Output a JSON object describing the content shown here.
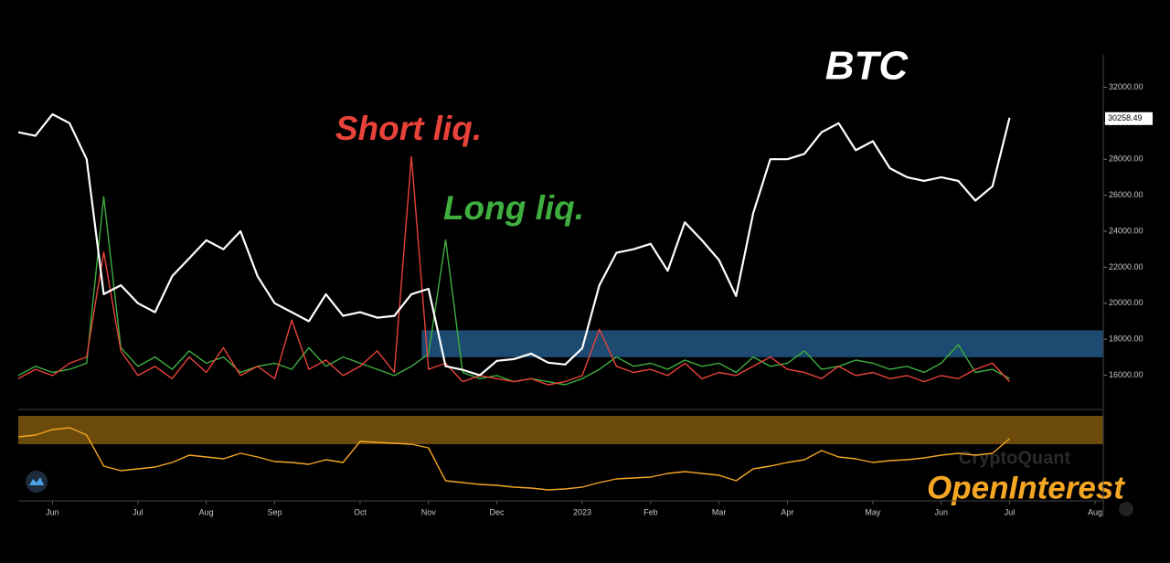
{
  "chart_data": [
    {
      "type": "line",
      "series": [
        {
          "name": "BTC",
          "color": "#ffffff",
          "axis": "y",
          "values": [
            29500,
            29300,
            30500,
            30000,
            28000,
            20500,
            21000,
            20000,
            19500,
            21500,
            22500,
            23500,
            23000,
            24000,
            21500,
            20000,
            19500,
            19000,
            20500,
            19300,
            19500,
            19200,
            19300,
            20500,
            20800,
            16500,
            16300,
            16000,
            16800,
            16900,
            17200,
            16700,
            16600,
            17500,
            21000,
            22800,
            23000,
            23300,
            21800,
            24500,
            23500,
            22400,
            20400,
            25000,
            28000,
            28000,
            28300,
            29500,
            30000,
            28500,
            29000,
            27500,
            27000,
            26800,
            27000,
            26800,
            25700,
            26500,
            30300,
            null,
            null,
            null,
            null,
            null
          ]
        },
        {
          "name": "Short liq.",
          "color": "#e8423a",
          "axis": "y2",
          "values": [
            5,
            8,
            6,
            10,
            12,
            46,
            14,
            6,
            9,
            5,
            12,
            7,
            15,
            6,
            9,
            5,
            24,
            8,
            11,
            6,
            9,
            14,
            7,
            77,
            8,
            10,
            4,
            6,
            5,
            4,
            5,
            3,
            4,
            6,
            21,
            9,
            7,
            8,
            6,
            10,
            5,
            7,
            6,
            9,
            12,
            8,
            7,
            5,
            9,
            6,
            7,
            5,
            6,
            4,
            6,
            5,
            8,
            10,
            4,
            null,
            null,
            null,
            null,
            null
          ]
        },
        {
          "name": "Long liq.",
          "color": "#3fae3f",
          "axis": "y2",
          "values": [
            6,
            9,
            7,
            8,
            10,
            64,
            15,
            9,
            12,
            8,
            14,
            10,
            12,
            7,
            9,
            10,
            8,
            15,
            9,
            12,
            10,
            8,
            6,
            9,
            13,
            50,
            7,
            5,
            6,
            4,
            5,
            4,
            3,
            5,
            8,
            12,
            9,
            10,
            8,
            11,
            9,
            10,
            7,
            12,
            9,
            10,
            14,
            8,
            9,
            11,
            10,
            8,
            9,
            7,
            10,
            16,
            7,
            8,
            5,
            null,
            null,
            null,
            null,
            null
          ]
        }
      ],
      "ylim": [
        14100,
        33800
      ],
      "yticks": [
        {
          "value": 16000,
          "label": "16000.00"
        },
        {
          "value": 18000,
          "label": "18000.00"
        },
        {
          "value": 20000,
          "label": "20000.00"
        },
        {
          "value": 22000,
          "label": "22000.00"
        },
        {
          "value": 24000,
          "label": "24000.00"
        },
        {
          "value": 26000,
          "label": "26000.00"
        },
        {
          "value": 28000,
          "label": "28000.00"
        },
        {
          "value": 30000,
          "label": "30000.00"
        },
        {
          "value": 32000,
          "label": "32000.00"
        }
      ],
      "y2lim": [
        -5,
        110
      ],
      "last_value": 30258.49,
      "highlight": [
        17000,
        18500
      ],
      "highlight_color": "#1c4a70"
    },
    {
      "type": "line",
      "categories": [
        null,
        null,
        "Jun",
        null,
        null,
        null,
        null,
        "Jul",
        null,
        null,
        null,
        "Aug",
        null,
        null,
        null,
        "Sep",
        null,
        null,
        null,
        null,
        "Oct",
        null,
        null,
        null,
        "Nov",
        null,
        null,
        null,
        "Dec",
        null,
        null,
        null,
        null,
        "2023",
        null,
        null,
        null,
        "Feb",
        null,
        null,
        null,
        "Mar",
        null,
        null,
        null,
        "Apr",
        null,
        null,
        null,
        null,
        "May",
        null,
        null,
        null,
        "Jun",
        null,
        null,
        null,
        "Jul",
        null,
        null,
        null,
        null,
        "Aug"
      ],
      "series": [
        {
          "name": "OpenInterest",
          "color": "#f5a623",
          "values": [
            70,
            72,
            78,
            80,
            72,
            38,
            33,
            35,
            37,
            42,
            50,
            48,
            46,
            52,
            48,
            43,
            42,
            40,
            45,
            42,
            65,
            64,
            63,
            62,
            58,
            22,
            20,
            18,
            17,
            15,
            14,
            12,
            13,
            15,
            20,
            24,
            25,
            26,
            30,
            32,
            30,
            28,
            22,
            35,
            38,
            42,
            45,
            55,
            48,
            46,
            42,
            44,
            45,
            47,
            50,
            52,
            50,
            52,
            68,
            null,
            null,
            null,
            null,
            null
          ]
        }
      ],
      "ylim": [
        0,
        100
      ],
      "highlight": [
        62,
        93
      ],
      "highlight_color": "#6b4a0c",
      "watermark": "CryptoQuant"
    }
  ]
}
